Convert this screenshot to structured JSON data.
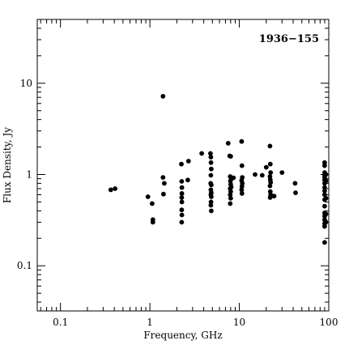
{
  "chart_data": {
    "type": "scatter",
    "title": "1936−155",
    "xlabel": "Frequency, GHz",
    "ylabel": "Flux Density, Jy",
    "xscale": "log",
    "yscale": "log",
    "xlim": [
      0.055,
      100
    ],
    "ylim": [
      0.032,
      50
    ],
    "x_ticks": [
      0.1,
      1,
      10,
      100
    ],
    "x_tick_labels": [
      "0.1",
      "1",
      "10",
      "100"
    ],
    "y_ticks": [
      0.1,
      1,
      10
    ],
    "y_tick_labels": [
      "0.1",
      "1",
      "10"
    ],
    "grid": false,
    "legend": "none",
    "series": [
      {
        "marker": "filled-circle",
        "color": "#000000",
        "points": [
          [
            0.365,
            0.68
          ],
          [
            0.408,
            0.7
          ],
          [
            0.95,
            0.57
          ],
          [
            1.06,
            0.48
          ],
          [
            1.08,
            0.32
          ],
          [
            1.08,
            0.3
          ],
          [
            1.4,
            7.2
          ],
          [
            1.4,
            0.93
          ],
          [
            1.42,
            0.61
          ],
          [
            1.45,
            0.8
          ],
          [
            2.25,
            1.3
          ],
          [
            2.27,
            0.84
          ],
          [
            2.28,
            0.72
          ],
          [
            2.28,
            0.62
          ],
          [
            2.27,
            0.56
          ],
          [
            2.28,
            0.5
          ],
          [
            2.27,
            0.41
          ],
          [
            2.28,
            0.36
          ],
          [
            2.27,
            0.3
          ],
          [
            2.7,
            1.4
          ],
          [
            2.65,
            0.87
          ],
          [
            3.8,
            1.7
          ],
          [
            4.75,
            1.7
          ],
          [
            4.8,
            1.55
          ],
          [
            4.82,
            1.35
          ],
          [
            4.85,
            1.15
          ],
          [
            4.8,
            0.98
          ],
          [
            4.78,
            0.8
          ],
          [
            4.85,
            0.77
          ],
          [
            4.8,
            0.68
          ],
          [
            4.85,
            0.63
          ],
          [
            4.8,
            0.6
          ],
          [
            4.85,
            0.57
          ],
          [
            4.82,
            0.5
          ],
          [
            4.8,
            0.46
          ],
          [
            4.85,
            0.4
          ],
          [
            7.5,
            2.2
          ],
          [
            7.8,
            1.6
          ],
          [
            8.0,
            1.58
          ],
          [
            7.9,
            0.95
          ],
          [
            8.1,
            0.9
          ],
          [
            7.95,
            0.85
          ],
          [
            8.0,
            0.78
          ],
          [
            8.1,
            0.73
          ],
          [
            7.9,
            0.7
          ],
          [
            8.0,
            0.65
          ],
          [
            7.9,
            0.6
          ],
          [
            8.0,
            0.55
          ],
          [
            7.9,
            0.48
          ],
          [
            8.6,
            0.92
          ],
          [
            10.6,
            2.3
          ],
          [
            10.7,
            1.25
          ],
          [
            10.8,
            0.93
          ],
          [
            10.6,
            0.86
          ],
          [
            10.8,
            0.8
          ],
          [
            10.7,
            0.74
          ],
          [
            10.6,
            0.68
          ],
          [
            10.7,
            0.62
          ],
          [
            15.0,
            1.0
          ],
          [
            18.0,
            0.98
          ],
          [
            20.0,
            1.2
          ],
          [
            22.0,
            2.05
          ],
          [
            22.2,
            1.3
          ],
          [
            22.4,
            1.05
          ],
          [
            22.0,
            0.95
          ],
          [
            22.2,
            0.88
          ],
          [
            22.4,
            0.82
          ],
          [
            22.0,
            0.75
          ],
          [
            22.2,
            0.65
          ],
          [
            22.4,
            0.6
          ],
          [
            22.1,
            0.56
          ],
          [
            24.5,
            0.58
          ],
          [
            30.0,
            1.05
          ],
          [
            42.0,
            0.8
          ],
          [
            42.5,
            0.63
          ],
          [
            90,
            1.35
          ],
          [
            90,
            1.25
          ],
          [
            90,
            1.05
          ],
          [
            90,
            0.98
          ],
          [
            90,
            0.93
          ],
          [
            90,
            0.87
          ],
          [
            90,
            0.8
          ],
          [
            90,
            0.72
          ],
          [
            90,
            0.66
          ],
          [
            90,
            0.6
          ],
          [
            90,
            0.53
          ],
          [
            90,
            0.45
          ],
          [
            90,
            0.38
          ],
          [
            90,
            0.35
          ],
          [
            90,
            0.32
          ],
          [
            90,
            0.29
          ],
          [
            90,
            0.27
          ],
          [
            90,
            0.18
          ],
          [
            93,
            1.0
          ],
          [
            93,
            0.85
          ],
          [
            93,
            0.55
          ],
          [
            93,
            0.37
          ],
          [
            93,
            0.3
          ]
        ]
      }
    ]
  }
}
